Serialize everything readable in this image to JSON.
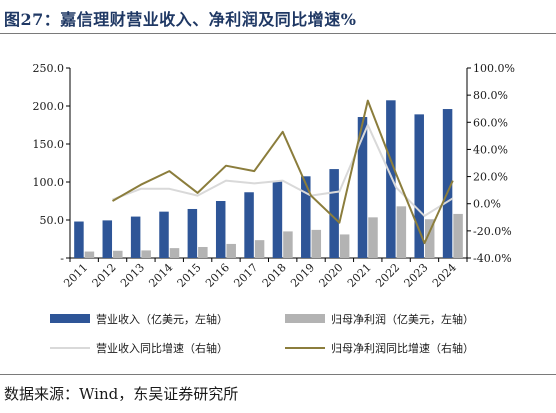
{
  "header": {
    "title": "图27：嘉信理财营业收入、净利润及同比增速%"
  },
  "footer": {
    "source": "数据来源：Wind，东吴证券研究所"
  },
  "colors": {
    "revenue_bar": "#2e5597",
    "profit_bar": "#b3b3b3",
    "revenue_growth_line": "#d9d9d9",
    "profit_growth_line": "#8b7d3c",
    "title": "#1f3864"
  },
  "chart_data": {
    "type": "bar",
    "categories": [
      "2011",
      "2012",
      "2013",
      "2014",
      "2015",
      "2016",
      "2017",
      "2018",
      "2019",
      "2020",
      "2021",
      "2022",
      "2023",
      "2024"
    ],
    "left_axis": {
      "ylim": [
        0,
        250
      ],
      "ticks": [
        0,
        50,
        100,
        150,
        200,
        250
      ],
      "tick_labels": [
        "-",
        "50.0",
        "100.0",
        "150.0",
        "200.0",
        "250.0"
      ]
    },
    "right_axis": {
      "ylim": [
        -40,
        100
      ],
      "ticks": [
        -40,
        -20,
        0,
        20,
        40,
        60,
        80,
        100
      ],
      "tick_labels": [
        "-40.0%",
        "-20.0%",
        "0.0%",
        "20.0%",
        "40.0%",
        "60.0%",
        "80.0%",
        "100.0%"
      ]
    },
    "series": [
      {
        "name": "营业收入（亿美元，左轴）",
        "type": "bar",
        "axis": "left",
        "values": [
          48,
          49.5,
          54.5,
          61,
          64.5,
          75,
          86.5,
          101,
          107.5,
          117,
          185.5,
          207.5,
          189,
          196
        ]
      },
      {
        "name": "归母净利润（亿美元，左轴）",
        "type": "bar",
        "axis": "left",
        "values": [
          8.5,
          9.5,
          10,
          13,
          14.5,
          18.5,
          23.5,
          35,
          37,
          31,
          53.5,
          68,
          51,
          58
        ]
      },
      {
        "name": "营业收入同比增速（右轴）",
        "type": "line",
        "axis": "right",
        "values": [
          null,
          3,
          11,
          11,
          6,
          17,
          15,
          17,
          6,
          9,
          58,
          12,
          -9,
          4
        ]
      },
      {
        "name": "归母净利润同比增速（右轴）",
        "type": "line",
        "axis": "right",
        "values": [
          null,
          2,
          14,
          24,
          8,
          28,
          24,
          53,
          6,
          -14,
          76,
          22,
          -29,
          17
        ]
      }
    ]
  }
}
